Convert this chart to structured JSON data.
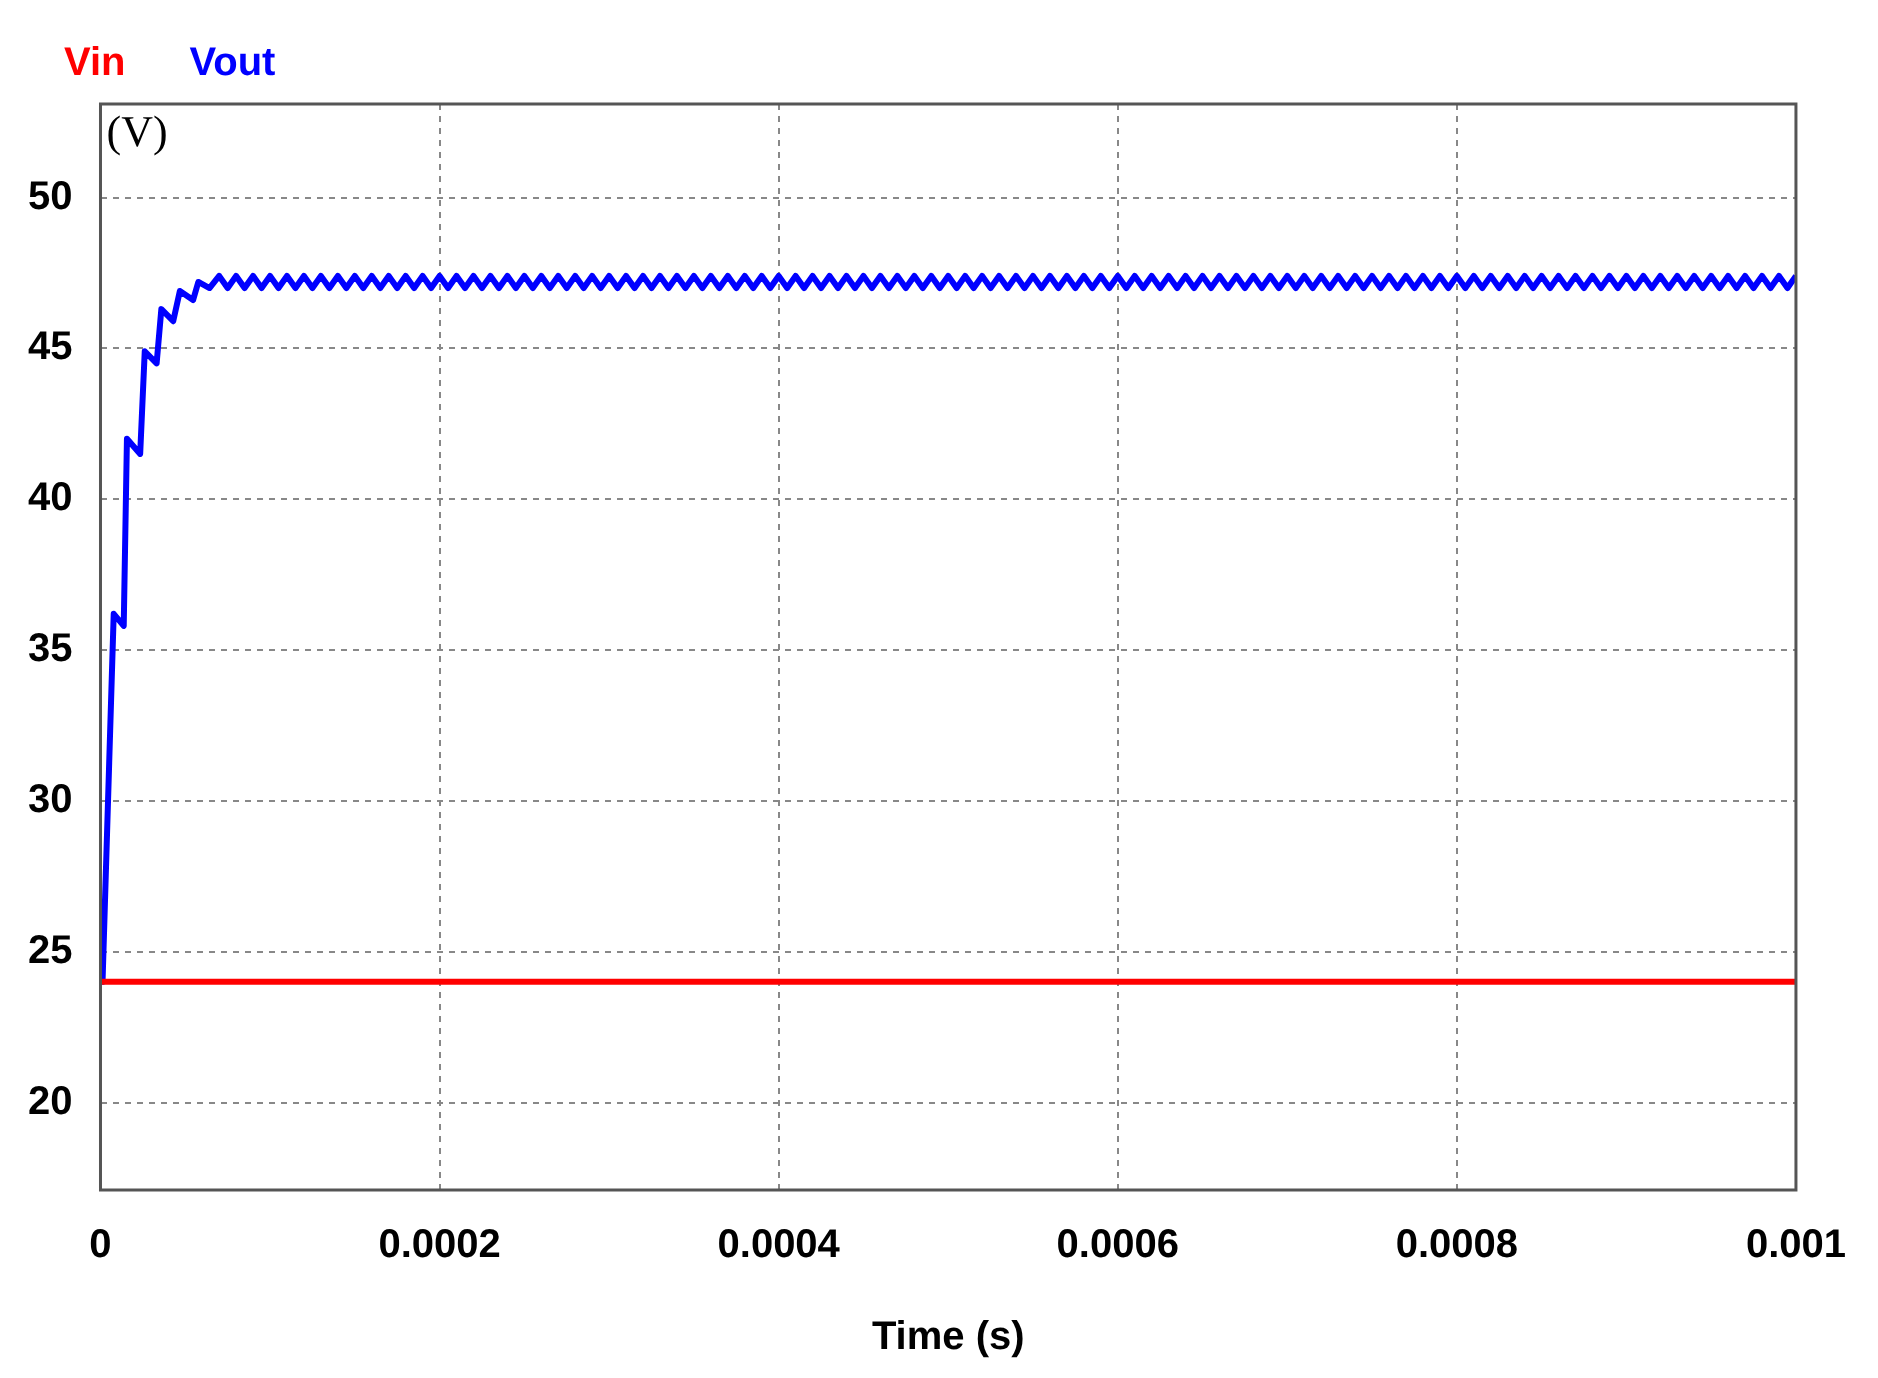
{
  "chart_data": {
    "type": "line",
    "xlabel": "Time (s)",
    "ylabel": "(V)",
    "xlim": [
      0,
      0.001
    ],
    "ylim": [
      17.1,
      53.1
    ],
    "xticks": [
      0,
      0.0002,
      0.0004,
      0.0006,
      0.0008,
      0.001
    ],
    "yticks": [
      20,
      25,
      30,
      35,
      40,
      45,
      50
    ],
    "grid": true,
    "legend": "top left",
    "marker": "none",
    "line_style": "solid",
    "series": [
      {
        "name": "Vin",
        "color": "#ff0000",
        "x": [
          0,
          0.001
        ],
        "values": [
          24,
          24
        ]
      },
      {
        "name": "Vout",
        "color": "#0000ff",
        "x": [
          0,
          1.2e-06,
          7.8e-06,
          1.37e-05,
          1.56e-05,
          2.34e-05,
          2.61e-05,
          3.31e-05,
          3.59e-05,
          4.29e-05,
          4.68e-05,
          5.46e-05,
          5.77e-05,
          6.43e-05,
          7e-05,
          7.5e-05,
          8e-05,
          8.5e-05,
          9e-05,
          9.5e-05,
          0.0001,
          0.000105,
          0.00011,
          0.000115,
          0.00012,
          0.000125,
          0.00013,
          0.000135,
          0.00014,
          0.000145,
          0.00015,
          0.000155,
          0.00016,
          0.000165,
          0.00017,
          0.000175,
          0.00018,
          0.000185,
          0.00019,
          0.000195,
          0.0002,
          0.000205,
          0.00021,
          0.000215,
          0.00022,
          0.000225,
          0.00023,
          0.000235,
          0.00024,
          0.000245,
          0.00025,
          0.000255,
          0.00026,
          0.000265,
          0.00027,
          0.000275,
          0.00028,
          0.000285,
          0.00029,
          0.000295,
          0.0003,
          0.000305,
          0.00031,
          0.000315,
          0.00032,
          0.000325,
          0.00033,
          0.000335,
          0.00034,
          0.000345,
          0.00035,
          0.000355,
          0.00036,
          0.000365,
          0.00037,
          0.000375,
          0.00038,
          0.000385,
          0.00039,
          0.000395,
          0.0004,
          0.000405,
          0.00041,
          0.000415,
          0.00042,
          0.000425,
          0.00043,
          0.000435,
          0.00044,
          0.000445,
          0.00045,
          0.000455,
          0.00046,
          0.000465,
          0.00047,
          0.000475,
          0.00048,
          0.000485,
          0.00049,
          0.000495,
          0.0005,
          0.000505,
          0.00051,
          0.000515,
          0.00052,
          0.000525,
          0.00053,
          0.000535,
          0.00054,
          0.000545,
          0.00055,
          0.000555,
          0.00056,
          0.000565,
          0.00057,
          0.000575,
          0.00058,
          0.000585,
          0.00059,
          0.000595,
          0.0006,
          0.000605,
          0.00061,
          0.000615,
          0.00062,
          0.000625,
          0.00063,
          0.000635,
          0.00064,
          0.000645,
          0.00065,
          0.000655,
          0.00066,
          0.000665,
          0.00067,
          0.000675,
          0.00068,
          0.000685,
          0.00069,
          0.000695,
          0.0007,
          0.000705,
          0.00071,
          0.000715,
          0.00072,
          0.000725,
          0.00073,
          0.000735,
          0.00074,
          0.000745,
          0.00075,
          0.000755,
          0.00076,
          0.000765,
          0.00077,
          0.000775,
          0.00078,
          0.000785,
          0.00079,
          0.000795,
          0.0008,
          0.000805,
          0.00081,
          0.000815,
          0.00082,
          0.000825,
          0.00083,
          0.000835,
          0.00084,
          0.000845,
          0.00085,
          0.000855,
          0.00086,
          0.000865,
          0.00087,
          0.000875,
          0.00088,
          0.000885,
          0.00089,
          0.000895,
          0.0009,
          0.000905,
          0.00091,
          0.000915,
          0.00092,
          0.000925,
          0.00093,
          0.000935,
          0.00094,
          0.000945,
          0.00095,
          0.000955,
          0.00096,
          0.000965,
          0.00097,
          0.000975,
          0.00098,
          0.000985,
          0.00099,
          0.000995,
          0.001
        ],
        "values": [
          24,
          24,
          36.2,
          35.8,
          42,
          41.5,
          44.9,
          44.5,
          46.3,
          45.9,
          46.9,
          46.6,
          47.2,
          47,
          47.4,
          47,
          47.4,
          47,
          47.4,
          47,
          47.4,
          47,
          47.4,
          47,
          47.4,
          47,
          47.4,
          47,
          47.4,
          47,
          47.4,
          47,
          47.4,
          47,
          47.4,
          47,
          47.4,
          47,
          47.4,
          47,
          47.4,
          47,
          47.4,
          47,
          47.4,
          47,
          47.4,
          47,
          47.4,
          47,
          47.4,
          47,
          47.4,
          47,
          47.4,
          47,
          47.4,
          47,
          47.4,
          47,
          47.4,
          47,
          47.4,
          47,
          47.4,
          47,
          47.4,
          47,
          47.4,
          47,
          47.4,
          47,
          47.4,
          47,
          47.4,
          47,
          47.4,
          47,
          47.4,
          47,
          47.4,
          47,
          47.4,
          47,
          47.4,
          47,
          47.4,
          47,
          47.4,
          47,
          47.4,
          47,
          47.4,
          47,
          47.4,
          47,
          47.4,
          47,
          47.4,
          47,
          47.4,
          47,
          47.4,
          47,
          47.4,
          47,
          47.4,
          47,
          47.4,
          47,
          47.4,
          47,
          47.4,
          47,
          47.4,
          47,
          47.4,
          47,
          47.4,
          47,
          47.4,
          47,
          47.4,
          47,
          47.4,
          47,
          47.4,
          47,
          47.4,
          47,
          47.4,
          47,
          47.4,
          47,
          47.4,
          47,
          47.4,
          47,
          47.4,
          47,
          47.4,
          47,
          47.4,
          47,
          47.4,
          47,
          47.4,
          47,
          47.4,
          47,
          47.4,
          47,
          47.4,
          47,
          47.4,
          47,
          47.4,
          47,
          47.4,
          47,
          47.4,
          47,
          47.4,
          47,
          47.4,
          47,
          47.4,
          47,
          47.4,
          47,
          47.4,
          47,
          47.4,
          47,
          47.4,
          47,
          47.4,
          47,
          47.4,
          47,
          47.4,
          47,
          47.4,
          47,
          47.4,
          47,
          47.4,
          47,
          47.4,
          47,
          47.4,
          47,
          47.4,
          47,
          47.4,
          47,
          47.4,
          47,
          47.4,
          47,
          47.4
        ]
      }
    ]
  }
}
